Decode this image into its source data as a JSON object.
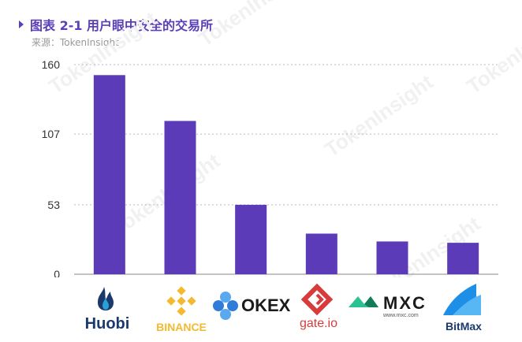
{
  "title": "图表 2-1 用户眼中安全的交易所",
  "source": "来源：TokenInsight",
  "watermark": "TokenInsight",
  "colors": {
    "bar": "#5b3bb8",
    "title": "#5b3fb8",
    "grid": "#bbbbbb",
    "axis_text": "#333333"
  },
  "chart_data": {
    "type": "bar",
    "categories": [
      "Huobi",
      "Binance",
      "OKEX",
      "gate.io",
      "MXC",
      "BitMax"
    ],
    "values": [
      152,
      117,
      53,
      31,
      25,
      24
    ],
    "yticks": [
      0,
      53,
      107,
      160
    ],
    "ylim": [
      0,
      160
    ],
    "grid": true,
    "title": "用户眼中安全的交易所"
  },
  "logos": {
    "huobi": {
      "text": "Huobi",
      "icon": "flame-icon"
    },
    "binance": {
      "text": "BINANCE",
      "icon": "binance-diamond-icon"
    },
    "okex": {
      "text": "OKEX",
      "icon": "okex-circles-icon"
    },
    "gate": {
      "text": "gate.io",
      "icon": "gate-icon"
    },
    "mxc": {
      "text": "MXC",
      "sub": "www.mxc.com",
      "icon": "mxc-mountain-icon"
    },
    "bitmax": {
      "text": "BitMax",
      "icon": "bitmax-wave-icon"
    }
  }
}
